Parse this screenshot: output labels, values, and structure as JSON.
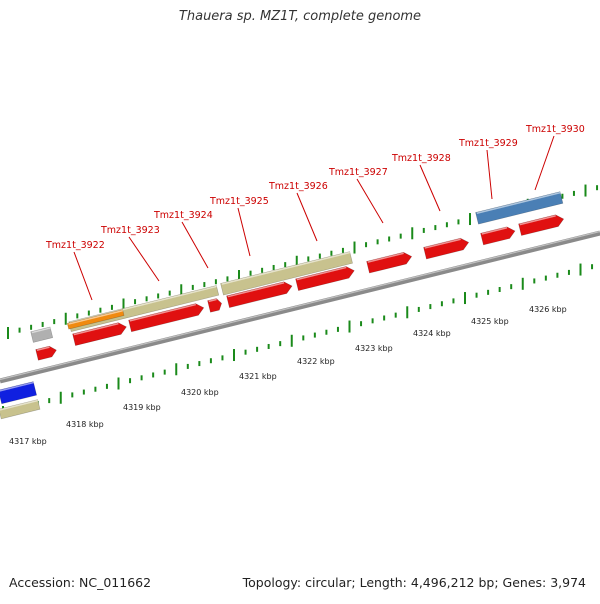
{
  "title": "Thauera sp. MZ1T, complete genome",
  "footer": {
    "accession": "Accession: NC_011662",
    "summary": "Topology: circular; Length: 4,496,212 bp; Genes: 3,974"
  },
  "ruler_labels": [
    "4317 kbp",
    "4318 kbp",
    "4319 kbp",
    "4320 kbp",
    "4321 kbp",
    "4322 kbp",
    "4323 kbp",
    "4324 kbp",
    "4325 kbp",
    "4326 kbp"
  ],
  "gene_labels": [
    "Tmz1t_3922",
    "Tmz1t_3923",
    "Tmz1t_3924",
    "Tmz1t_3925",
    "Tmz1t_3926",
    "Tmz1t_3927",
    "Tmz1t_3928",
    "Tmz1t_3929",
    "Tmz1t_3930"
  ],
  "colors": {
    "cds_red": "#e01010",
    "rrna_khaki": "#c8c28e",
    "orange": "#f08a10",
    "blue": "#1020e0",
    "steel_blue": "#4a7fb5",
    "gray": "#b0b0b0",
    "tick_green": "#1a8a1a",
    "label_red": "#cc0000",
    "backbone_gray": "#909090"
  }
}
